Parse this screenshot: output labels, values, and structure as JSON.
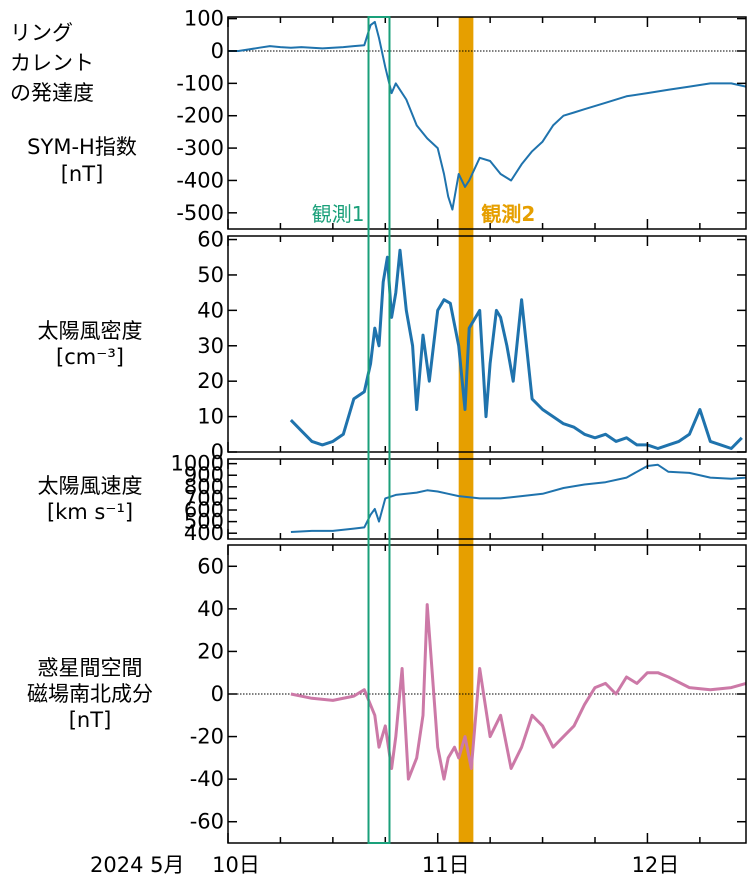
{
  "colors": {
    "series_blue": "#1f73ad",
    "series_pink": "#cc79a7",
    "obs1": "#1aa07a",
    "obs2": "#e69f00",
    "axis": "#000000"
  },
  "observations": {
    "obs1": {
      "label": "観測1",
      "start_day": 10.67,
      "end_day": 10.77
    },
    "obs2": {
      "label": "観測2",
      "start_day": 11.1,
      "end_day": 11.17
    }
  },
  "x_axis": {
    "range_days": [
      10.0,
      12.47
    ],
    "prefix": "2024 5月",
    "tick_labels": [
      {
        "day": 10.0,
        "label": "10日"
      },
      {
        "day": 11.0,
        "label": "11日"
      },
      {
        "day": 12.0,
        "label": "12日"
      }
    ]
  },
  "chart_data": [
    {
      "type": "line",
      "id": "symh",
      "label_lines": [
        "リング",
        "カレント",
        "の発達度",
        "SYM-H指数",
        "[nT]"
      ],
      "ylim": [
        -550,
        105
      ],
      "yticks": [
        100,
        0,
        -100,
        -200,
        -300,
        -400,
        -500
      ],
      "zero_line": true,
      "color": "#1f73ad",
      "x": [
        10.0,
        10.05,
        10.1,
        10.15,
        10.2,
        10.25,
        10.3,
        10.35,
        10.4,
        10.45,
        10.5,
        10.55,
        10.6,
        10.65,
        10.68,
        10.7,
        10.72,
        10.75,
        10.78,
        10.8,
        10.85,
        10.9,
        10.95,
        11.0,
        11.03,
        11.05,
        11.07,
        11.1,
        11.13,
        11.15,
        11.2,
        11.25,
        11.3,
        11.35,
        11.4,
        11.45,
        11.5,
        11.55,
        11.6,
        11.65,
        11.7,
        11.8,
        11.9,
        12.0,
        12.1,
        12.2,
        12.3,
        12.4,
        12.47
      ],
      "y": [
        0,
        0,
        5,
        10,
        15,
        12,
        10,
        12,
        10,
        8,
        10,
        12,
        15,
        18,
        80,
        90,
        40,
        -50,
        -130,
        -100,
        -150,
        -230,
        -270,
        -300,
        -380,
        -450,
        -490,
        -380,
        -420,
        -400,
        -330,
        -340,
        -380,
        -400,
        -350,
        -310,
        -280,
        -230,
        -200,
        -190,
        -180,
        -160,
        -140,
        -130,
        -120,
        -110,
        -100,
        -100,
        -110
      ]
    },
    {
      "type": "line",
      "id": "density",
      "label_lines": [
        "太陽風密度",
        "[cm⁻³]"
      ],
      "ylim": [
        0,
        61
      ],
      "yticks": [
        0,
        10,
        20,
        30,
        40,
        50,
        60
      ],
      "zero_line": false,
      "color": "#1f73ad",
      "x": [
        10.3,
        10.35,
        10.4,
        10.45,
        10.5,
        10.55,
        10.6,
        10.65,
        10.68,
        10.7,
        10.72,
        10.74,
        10.76,
        10.78,
        10.8,
        10.82,
        10.85,
        10.88,
        10.9,
        10.93,
        10.96,
        11.0,
        11.03,
        11.06,
        11.1,
        11.13,
        11.15,
        11.2,
        11.23,
        11.25,
        11.28,
        11.3,
        11.33,
        11.36,
        11.4,
        11.45,
        11.5,
        11.55,
        11.6,
        11.65,
        11.7,
        11.75,
        11.8,
        11.85,
        11.9,
        11.95,
        12.0,
        12.05,
        12.1,
        12.15,
        12.2,
        12.25,
        12.3,
        12.35,
        12.4,
        12.45
      ],
      "y": [
        9,
        6,
        3,
        2,
        3,
        5,
        15,
        17,
        25,
        35,
        30,
        48,
        55,
        38,
        45,
        57,
        40,
        30,
        12,
        33,
        20,
        40,
        43,
        42,
        30,
        12,
        35,
        40,
        10,
        25,
        40,
        38,
        30,
        20,
        43,
        15,
        12,
        10,
        8,
        7,
        5,
        4,
        5,
        3,
        4,
        2,
        2,
        1,
        2,
        3,
        5,
        12,
        3,
        2,
        1,
        4
      ]
    },
    {
      "type": "line",
      "id": "speed",
      "label_lines": [
        "太陽風速度",
        "[km s⁻¹]"
      ],
      "ylim": [
        350,
        1040
      ],
      "yticks": [
        400,
        500,
        600,
        700,
        800,
        900,
        1000
      ],
      "zero_line": false,
      "color": "#1f73ad",
      "x": [
        10.3,
        10.4,
        10.5,
        10.6,
        10.65,
        10.68,
        10.7,
        10.72,
        10.75,
        10.8,
        10.85,
        10.9,
        10.95,
        11.0,
        11.05,
        11.1,
        11.15,
        11.2,
        11.3,
        11.4,
        11.5,
        11.6,
        11.7,
        11.8,
        11.9,
        12.0,
        12.05,
        12.1,
        12.2,
        12.3,
        12.4,
        12.47
      ],
      "y": [
        410,
        420,
        420,
        440,
        450,
        560,
        610,
        500,
        700,
        730,
        740,
        750,
        770,
        760,
        740,
        720,
        710,
        700,
        700,
        720,
        740,
        790,
        820,
        840,
        880,
        980,
        990,
        930,
        920,
        880,
        870,
        880
      ]
    },
    {
      "type": "line",
      "id": "imf_bz",
      "label_lines": [
        "惑星間空間",
        "磁場南北成分",
        "[nT]"
      ],
      "ylim": [
        -70,
        70
      ],
      "yticks": [
        60,
        40,
        20,
        0,
        -20,
        -40,
        -60
      ],
      "zero_line": true,
      "color": "#cc79a7",
      "x": [
        10.3,
        10.4,
        10.5,
        10.6,
        10.65,
        10.7,
        10.72,
        10.75,
        10.78,
        10.8,
        10.83,
        10.86,
        10.9,
        10.93,
        10.95,
        11.0,
        11.03,
        11.05,
        11.08,
        11.1,
        11.13,
        11.16,
        11.2,
        11.25,
        11.3,
        11.35,
        11.4,
        11.45,
        11.5,
        11.55,
        11.6,
        11.65,
        11.7,
        11.75,
        11.8,
        11.85,
        11.9,
        11.95,
        12.0,
        12.05,
        12.1,
        12.2,
        12.3,
        12.4,
        12.47
      ],
      "y": [
        0,
        -2,
        -3,
        -1,
        2,
        -10,
        -25,
        -15,
        -35,
        -20,
        12,
        -40,
        -30,
        -10,
        42,
        -25,
        -40,
        -30,
        -25,
        -30,
        -20,
        -35,
        12,
        -20,
        -10,
        -35,
        -25,
        -10,
        -15,
        -25,
        -20,
        -15,
        -5,
        3,
        5,
        0,
        8,
        5,
        10,
        10,
        8,
        3,
        2,
        3,
        5
      ]
    }
  ]
}
